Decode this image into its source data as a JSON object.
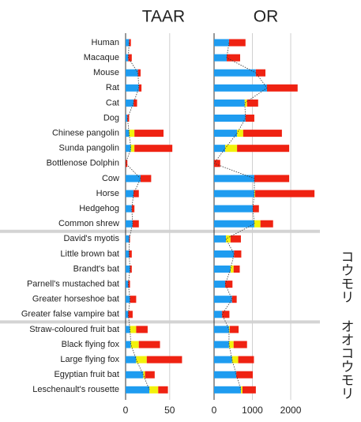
{
  "chart_data": [
    {
      "type": "bar",
      "orientation": "horizontal",
      "stacked": true,
      "title": "TAAR",
      "categories": [
        "Human",
        "Macaque",
        "Mouse",
        "Rat",
        "Cat",
        "Dog",
        "Chinese pangolin",
        "Sunda pangolin",
        "Bottlenose Dolphin",
        "Cow",
        "Horse",
        "Hedgehog",
        "Common shrew",
        "David's myotis",
        "Little brown bat",
        "Brandt's bat",
        "Parnell's mustached bat",
        "Greater horseshoe bat",
        "Greater false vampire bat",
        "Straw-coloured fruit bat",
        "Black flying fox",
        "Large flying fox",
        "Egyptian fruit bat",
        "Leschenault's rousette"
      ],
      "series": [
        {
          "color": "#1e9cf0",
          "values": [
            4,
            3,
            14,
            15,
            9,
            2,
            4,
            6,
            0,
            17,
            9,
            7,
            8,
            4,
            4,
            5,
            3,
            5,
            3,
            5,
            6,
            12,
            20,
            27
          ]
        },
        {
          "color": "#f2f20c",
          "values": [
            0,
            0,
            0,
            0,
            0,
            0,
            6,
            4,
            0,
            0,
            0,
            0,
            0,
            0,
            0,
            0,
            0,
            0,
            0,
            7,
            9,
            12,
            2,
            10
          ]
        },
        {
          "color": "#ef2212",
          "values": [
            2,
            4,
            3,
            3,
            4,
            2,
            33,
            43,
            2,
            12,
            6,
            3,
            7,
            1,
            3,
            2,
            2,
            7,
            5,
            13,
            24,
            40,
            11,
            11
          ]
        }
      ],
      "xlim": [
        0,
        86
      ],
      "xticks": [
        0,
        50
      ],
      "grid": true
    },
    {
      "type": "bar",
      "orientation": "horizontal",
      "stacked": true,
      "title": "OR",
      "series": [
        {
          "color": "#1e9cf0",
          "values": [
            390,
            330,
            1090,
            1380,
            800,
            820,
            600,
            290,
            0,
            1050,
            1050,
            1010,
            1050,
            310,
            520,
            430,
            290,
            470,
            210,
            390,
            390,
            470,
            580,
            700
          ]
        },
        {
          "color": "#f2f20c",
          "values": [
            0,
            0,
            0,
            0,
            60,
            0,
            160,
            310,
            0,
            0,
            20,
            0,
            160,
            120,
            0,
            80,
            0,
            0,
            0,
            20,
            120,
            160,
            0,
            40
          ]
        },
        {
          "color": "#ef2212",
          "values": [
            430,
            350,
            250,
            800,
            290,
            230,
            1010,
            1360,
            160,
            910,
            1550,
            160,
            330,
            270,
            190,
            160,
            190,
            120,
            190,
            230,
            350,
            410,
            430,
            350
          ]
        }
      ],
      "xlim": [
        0,
        2700
      ],
      "xticks": [
        0,
        1000,
        2000
      ],
      "grid": true,
      "annotations": [
        "コウモリ",
        "オオコウモリ"
      ]
    }
  ]
}
